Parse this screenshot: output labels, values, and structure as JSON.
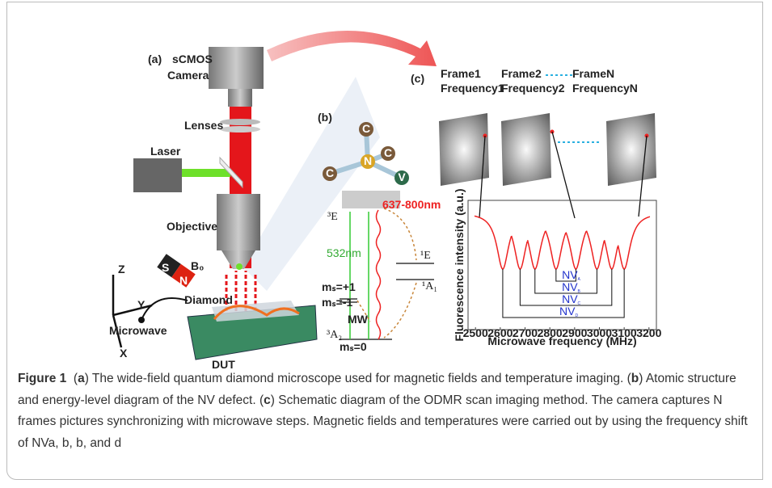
{
  "panel_a": {
    "label": "(a)",
    "camera": [
      "sCMOS",
      "Camera"
    ],
    "lenses": "Lenses",
    "laser": "Laser",
    "objective": "Objective",
    "magnet": {
      "field": "B₀",
      "south": "S",
      "north": "N"
    },
    "axes": {
      "z": "Z",
      "y": "Y",
      "x": "X"
    },
    "microwave": "Microwave",
    "diamond": "Diamond",
    "dut": "DUT"
  },
  "panel_b": {
    "label": "(b)",
    "atoms": [
      "C",
      "N",
      "C",
      "C",
      "V"
    ],
    "emission": "637-800nm",
    "excitation": "532nm",
    "excited_state": "³E",
    "singlet_upper": "¹E",
    "singlet_lower": "¹A₁",
    "ground_state": "³A₂",
    "ms_plus": "mₛ=+1",
    "ms_minus": "mₛ=-1",
    "ms_zero": "mₛ=0",
    "mw": "MW"
  },
  "panel_c": {
    "label": "(c)",
    "frames": [
      {
        "frame": "Frame1",
        "frequency": "Frequency1"
      },
      {
        "frame": "Frame2",
        "frequency": "Frequency2"
      },
      {
        "frame": "FrameN",
        "frequency": "FrequencyN"
      }
    ],
    "spectrum": {
      "type": "line",
      "xlabel": "Microwave frequency (MHz)",
      "ylabel": "Fluorescence intensity (a.u.)",
      "xlim": [
        2470,
        3230
      ],
      "xticks": [
        2500,
        2600,
        2700,
        2800,
        2900,
        3000,
        3100,
        3200
      ],
      "dips": [
        2610,
        2680,
        2740,
        2825,
        2905,
        2990,
        3050,
        3100
      ],
      "pairs": [
        {
          "text": "NV",
          "sub": "A"
        },
        {
          "text": "NV",
          "sub": "B"
        },
        {
          "text": "NV",
          "sub": "C"
        },
        {
          "text": "NV",
          "sub": "D"
        }
      ]
    }
  },
  "caption": {
    "parts": [
      {
        "text": "Figure 1",
        "bold": true
      },
      {
        "text": "  ("
      },
      {
        "text": "a",
        "bold": true
      },
      {
        "text": ") The wide-field quantum diamond microscope used for magnetic fields and temperature imaging. ("
      },
      {
        "text": "b",
        "bold": true
      },
      {
        "text": ") Atomic structure and energy-level diagram of the NV defect. ("
      },
      {
        "text": "c",
        "bold": true
      },
      {
        "text": ") Schematic diagram of the ODMR scan imaging method. The camera captures N frames pictures synchronizing with microwave steps. Magnetic fields and temperatures were carried out by using the frequency shift of NVa, b, b, and d"
      }
    ]
  }
}
